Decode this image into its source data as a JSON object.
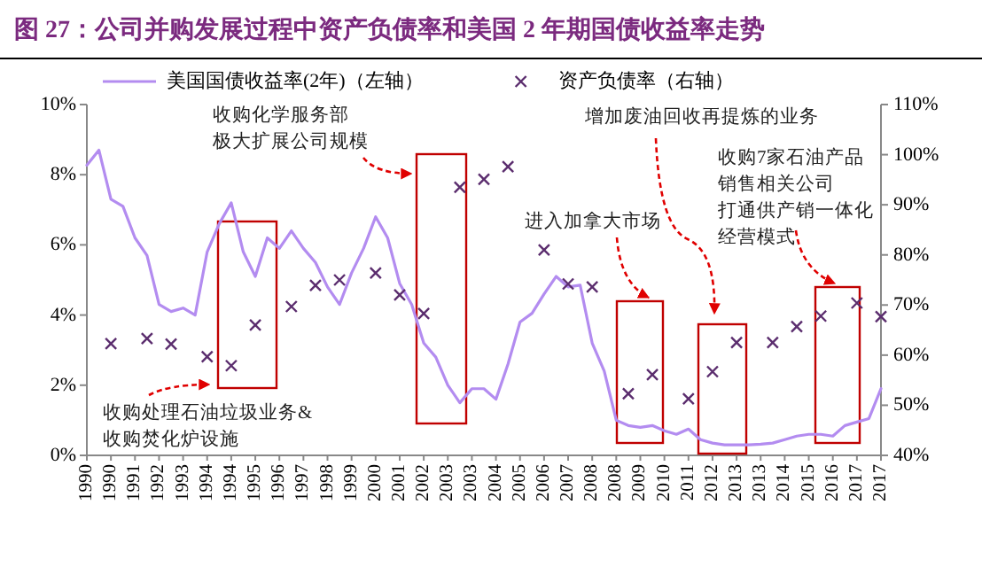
{
  "chart_data": {
    "type": "line",
    "title": "图 27：公司并购发展过程中资产负债率和美国 2 年期国债收益率走势",
    "categories": [
      "1990",
      null,
      "1990",
      null,
      "1991",
      null,
      "1992",
      null,
      "1993",
      null,
      "1994",
      null,
      "1994",
      null,
      "1995",
      null,
      "1996",
      null,
      "1997",
      null,
      "1998",
      null,
      "1999",
      null,
      "2000",
      null,
      "2001",
      null,
      "2002",
      null,
      "2003",
      null,
      "2003",
      null,
      "2004",
      null,
      "2005",
      null,
      "2006",
      null,
      "2007",
      null,
      "2008",
      null,
      "2008",
      null,
      "2009",
      null,
      "2010",
      null,
      "2011",
      null,
      "2012",
      null,
      "2013",
      null,
      "2013",
      null,
      "2014",
      null,
      "2015",
      null,
      "2016",
      null,
      "2017",
      null,
      "2017"
    ],
    "ylim": [
      0,
      10
    ],
    "yticks": [
      {
        "value": 0,
        "label": "0%"
      },
      {
        "value": 2,
        "label": "2%"
      },
      {
        "value": 4,
        "label": "4%"
      },
      {
        "value": 6,
        "label": "6%"
      },
      {
        "value": 8,
        "label": "8%"
      },
      {
        "value": 10,
        "label": "10%"
      }
    ],
    "y2lim": [
      40,
      110
    ],
    "y2ticks": [
      {
        "value": 40,
        "label": "40%"
      },
      {
        "value": 50,
        "label": "50%"
      },
      {
        "value": 60,
        "label": "60%"
      },
      {
        "value": 70,
        "label": "70%"
      },
      {
        "value": 80,
        "label": "80%"
      },
      {
        "value": 90,
        "label": "90%"
      },
      {
        "value": 100,
        "label": "100%"
      },
      {
        "value": 110,
        "label": "110%"
      }
    ],
    "grid": false,
    "legend": "top",
    "series": [
      {
        "name": "美国国债收益率(2年)（左轴）",
        "type": "line",
        "color": "#b38cf0",
        "values": [
          8.27,
          8.7,
          7.3,
          7.1,
          6.2,
          5.7,
          4.3,
          4.1,
          4.2,
          4.0,
          5.8,
          6.6,
          7.2,
          5.8,
          5.1,
          6.2,
          5.9,
          6.4,
          5.9,
          5.5,
          4.8,
          4.3,
          5.2,
          5.9,
          6.8,
          6.2,
          4.9,
          4.3,
          3.2,
          2.8,
          2.0,
          1.5,
          1.9,
          1.9,
          1.6,
          2.6,
          3.8,
          4.05,
          4.6,
          5.1,
          4.8,
          4.85,
          3.2,
          2.4,
          1.0,
          0.85,
          0.8,
          0.85,
          0.7,
          0.6,
          0.75,
          0.45,
          0.35,
          0.3,
          0.3,
          0.3,
          0.32,
          0.35,
          0.45,
          0.55,
          0.6,
          0.6,
          0.55,
          0.85,
          0.95,
          1.05,
          1.9
        ]
      },
      {
        "name": "资产负债率（右轴）",
        "type": "scatter",
        "axis": "y2",
        "color": "#5b2d6e",
        "marker": "cross",
        "values": [
          null,
          null,
          62.3,
          null,
          null,
          63.3,
          null,
          62.2,
          null,
          null,
          59.7,
          null,
          57.9,
          null,
          66.0,
          null,
          null,
          69.7,
          null,
          73.9,
          null,
          75.0,
          null,
          null,
          76.4,
          null,
          72.0,
          null,
          68.3,
          null,
          null,
          93.5,
          null,
          95.1,
          null,
          97.6,
          null,
          null,
          81.0,
          null,
          74.2,
          null,
          73.6,
          null,
          null,
          52.3,
          null,
          56.1,
          null,
          null,
          51.3,
          null,
          56.7,
          null,
          62.5,
          null,
          null,
          62.5,
          null,
          65.7,
          null,
          67.8,
          null,
          null,
          70.4,
          null,
          67.7
        ]
      }
    ],
    "annotations": [
      "收购处理石油垃圾业务&收购焚化炉设施",
      "收购化学服务部极大扩展公司规模",
      "进入加拿大市场",
      "增加废油回收再提炼的业务",
      "收购7家石油产品销售相关公司打通供产销一体化经营模式"
    ]
  }
}
